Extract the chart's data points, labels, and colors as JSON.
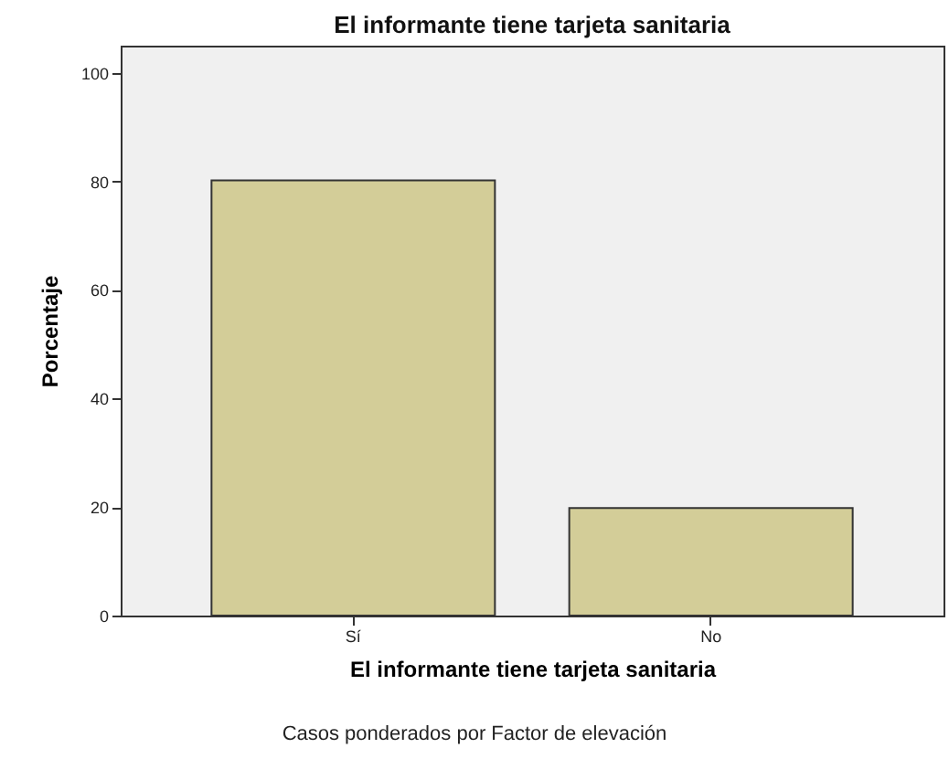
{
  "chart_data": {
    "type": "bar",
    "title": "El informante tiene tarjeta sanitaria",
    "xlabel": "El informante tiene tarjeta sanitaria",
    "ylabel": "Porcentaje",
    "categories": [
      "Sí",
      "No"
    ],
    "values": [
      80.2,
      19.8
    ],
    "color": "#d3cd98",
    "ylim": [
      0,
      105
    ],
    "yticks": [
      0,
      20,
      40,
      60,
      80,
      100
    ],
    "grid": false,
    "annotations": [
      "Casos ponderados por Factor de elevación"
    ]
  }
}
